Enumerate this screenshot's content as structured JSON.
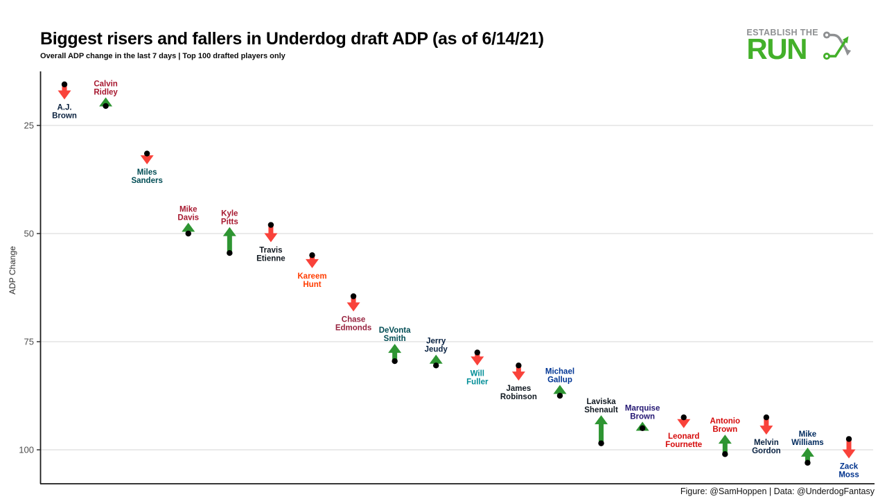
{
  "logo": {
    "top": "ESTABLISH THE",
    "main": "RUN"
  },
  "chart_data": {
    "type": "scatter",
    "title": "Biggest risers and fallers in Underdog draft ADP (as of 6/14/21)",
    "subtitle": "Overall ADP change in the last 7 days | Top 100 drafted players only",
    "caption": "Figure: @SamHoppen | Data: @UnderdogFantasy",
    "ylabel": "ADP Change",
    "yticks": [
      25,
      50,
      75,
      100
    ],
    "ylim": [
      12,
      107
    ],
    "y_axis_inverted": true,
    "grid": "horizontal gridlines only, no x axis labels",
    "legend": "none",
    "colors": {
      "riser": "#2E9532",
      "faller": "#F9423A",
      "marker": "#000000"
    },
    "players": [
      {
        "name": "A.J. Brown",
        "lines": [
          "A.J.",
          "Brown"
        ],
        "team_color": "#0C2340",
        "direction": "fall",
        "adp_from": 15.5,
        "adp_to": 19,
        "label_position": "below"
      },
      {
        "name": "Calvin Ridley",
        "lines": [
          "Calvin",
          "Ridley"
        ],
        "team_color": "#A71930",
        "direction": "rise",
        "adp_from": 20.5,
        "adp_to": 18.5,
        "label_position": "above"
      },
      {
        "name": "Miles Sanders",
        "lines": [
          "Miles",
          "Sanders"
        ],
        "team_color": "#004C54",
        "direction": "fall",
        "adp_from": 31.5,
        "adp_to": 34,
        "label_position": "below"
      },
      {
        "name": "Mike Davis",
        "lines": [
          "Mike",
          "Davis"
        ],
        "team_color": "#A71930",
        "direction": "rise",
        "adp_from": 50,
        "adp_to": 47.5,
        "label_position": "above"
      },
      {
        "name": "Kyle Pitts",
        "lines": [
          "Kyle",
          "Pitts"
        ],
        "team_color": "#A71930",
        "direction": "rise",
        "adp_from": 54.5,
        "adp_to": 48.5,
        "label_position": "above"
      },
      {
        "name": "Travis Etienne",
        "lines": [
          "Travis",
          "Etienne"
        ],
        "team_color": "#101820",
        "direction": "fall",
        "adp_from": 48,
        "adp_to": 52,
        "label_position": "below"
      },
      {
        "name": "Kareem Hunt",
        "lines": [
          "Kareem",
          "Hunt"
        ],
        "team_color": "#FF3C00",
        "direction": "fall",
        "adp_from": 55,
        "adp_to": 58,
        "label_position": "below"
      },
      {
        "name": "Chase Edmonds",
        "lines": [
          "Chase",
          "Edmonds"
        ],
        "team_color": "#97233F",
        "direction": "fall",
        "adp_from": 64.5,
        "adp_to": 68,
        "label_position": "below"
      },
      {
        "name": "DeVonta Smith",
        "lines": [
          "DeVonta",
          "Smith"
        ],
        "team_color": "#004C54",
        "direction": "rise",
        "adp_from": 79.5,
        "adp_to": 75.5,
        "label_position": "above"
      },
      {
        "name": "Jerry Jeudy",
        "lines": [
          "Jerry",
          "Jeudy"
        ],
        "team_color": "#0A2343",
        "direction": "rise",
        "adp_from": 80.5,
        "adp_to": 78,
        "label_position": "above"
      },
      {
        "name": "Will Fuller",
        "lines": [
          "Will",
          "Fuller"
        ],
        "team_color": "#008E97",
        "direction": "fall",
        "adp_from": 77.5,
        "adp_to": 80.5,
        "label_position": "below"
      },
      {
        "name": "James Robinson",
        "lines": [
          "James",
          "Robinson"
        ],
        "team_color": "#101820",
        "direction": "fall",
        "adp_from": 80.5,
        "adp_to": 84,
        "label_position": "below"
      },
      {
        "name": "Michael Gallup",
        "lines": [
          "Michael",
          "Gallup"
        ],
        "team_color": "#003594",
        "direction": "rise",
        "adp_from": 87.5,
        "adp_to": 85,
        "label_position": "above"
      },
      {
        "name": "Laviska Shenault",
        "lines": [
          "Laviska",
          "Shenault"
        ],
        "team_color": "#101820",
        "direction": "rise",
        "adp_from": 98.5,
        "adp_to": 92,
        "label_position": "above"
      },
      {
        "name": "Marquise Brown",
        "lines": [
          "Marquise",
          "Brown"
        ],
        "team_color": "#241773",
        "direction": "rise",
        "adp_from": 95,
        "adp_to": 93.5,
        "label_position": "above"
      },
      {
        "name": "Leonard Fournette",
        "lines": [
          "Leonard",
          "Fournette"
        ],
        "team_color": "#D50A0A",
        "direction": "fall",
        "adp_from": 92.5,
        "adp_to": 95,
        "label_position": "below"
      },
      {
        "name": "Antonio Brown",
        "lines": [
          "Antonio",
          "Brown"
        ],
        "team_color": "#D50A0A",
        "direction": "rise",
        "adp_from": 101,
        "adp_to": 96.5,
        "label_position": "above"
      },
      {
        "name": "Melvin Gordon",
        "lines": [
          "Melvin",
          "Gordon"
        ],
        "team_color": "#0A2343",
        "direction": "fall",
        "adp_from": 92.5,
        "adp_to": 96.5,
        "label_position": "below"
      },
      {
        "name": "Mike Williams",
        "lines": [
          "Mike",
          "Williams"
        ],
        "team_color": "#002A5E",
        "direction": "rise",
        "adp_from": 103,
        "adp_to": 99.5,
        "label_position": "above"
      },
      {
        "name": "Zack Moss",
        "lines": [
          "Zack",
          "Moss"
        ],
        "team_color": "#00338D",
        "direction": "fall",
        "adp_from": 97.5,
        "adp_to": 102,
        "label_position": "below"
      }
    ]
  }
}
